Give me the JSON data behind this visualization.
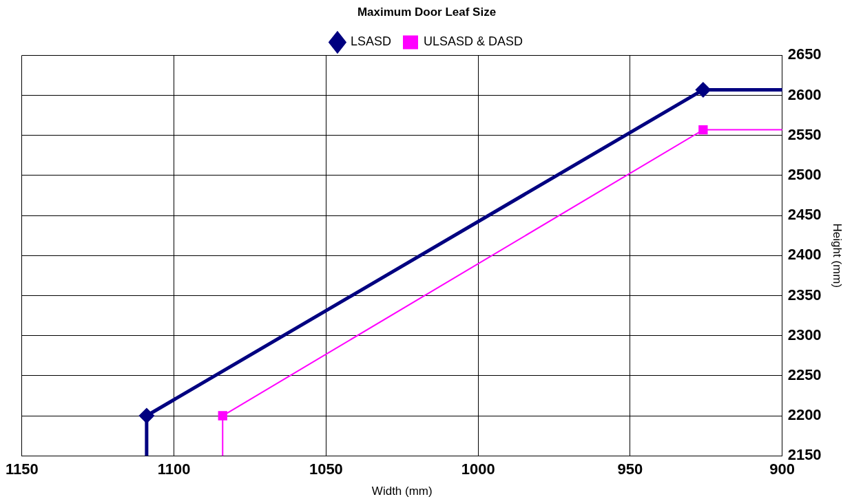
{
  "chart_data": {
    "type": "line",
    "title": "Maximum Door Leaf Size",
    "xlabel": "Width (mm)",
    "y2label": "Height (mm)",
    "series": [
      {
        "name": "LSASD",
        "color": "#000080",
        "x": [
          1109,
          1109,
          926,
          900
        ],
        "values": [
          2150,
          2200,
          2607,
          2607
        ],
        "marker": "diamond",
        "axis": "y2"
      },
      {
        "name": "ULSASD & DASD",
        "color": "#ff00ff",
        "x": [
          1084,
          1084,
          926,
          900
        ],
        "values": [
          2150,
          2200,
          2557,
          2557
        ],
        "marker": "square",
        "axis": "y2"
      }
    ],
    "xlim": [
      1150,
      900
    ],
    "xticks": [
      1150,
      1100,
      1050,
      1000,
      950,
      900
    ],
    "y2lim": [
      2150,
      2650
    ],
    "y2ticks": [
      2150,
      2200,
      2250,
      2300,
      2350,
      2400,
      2450,
      2500,
      2550,
      2600,
      2650
    ],
    "grid": true,
    "legend": "top",
    "line_style": "solid"
  }
}
